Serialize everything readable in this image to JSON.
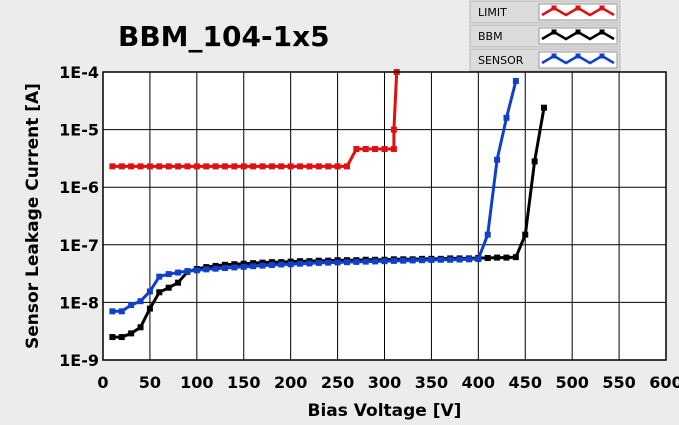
{
  "chart_data": {
    "type": "line",
    "title": "BBM_104-1x5",
    "xlabel": "Bias Voltage [V]",
    "ylabel": "Sensor Leakage Current [A]",
    "xlim": [
      0,
      600
    ],
    "ylim": [
      1e-09,
      0.0001
    ],
    "yscale": "log",
    "grid": true,
    "legend_position": "top-right",
    "x_ticks": [
      "0",
      "50",
      "100",
      "150",
      "200",
      "250",
      "300",
      "350",
      "400",
      "450",
      "500",
      "550",
      "600"
    ],
    "y_ticks": [
      "1E-9",
      "1E-8",
      "1E-7",
      "1E-6",
      "1E-5",
      "1E-4"
    ],
    "series": [
      {
        "name": "LIMIT",
        "color": "#e01010",
        "x": [
          10,
          20,
          30,
          40,
          50,
          60,
          70,
          80,
          90,
          100,
          110,
          120,
          130,
          140,
          150,
          160,
          170,
          180,
          190,
          200,
          210,
          220,
          230,
          240,
          250,
          260,
          270,
          280,
          290,
          300,
          310,
          310,
          313
        ],
        "y": [
          2.3e-06,
          2.3e-06,
          2.3e-06,
          2.3e-06,
          2.3e-06,
          2.3e-06,
          2.3e-06,
          2.3e-06,
          2.3e-06,
          2.3e-06,
          2.3e-06,
          2.3e-06,
          2.3e-06,
          2.3e-06,
          2.3e-06,
          2.3e-06,
          2.3e-06,
          2.3e-06,
          2.3e-06,
          2.3e-06,
          2.3e-06,
          2.3e-06,
          2.3e-06,
          2.3e-06,
          2.3e-06,
          2.3e-06,
          4.6e-06,
          4.6e-06,
          4.6e-06,
          4.6e-06,
          4.6e-06,
          1e-05,
          0.0001
        ]
      },
      {
        "name": "BBM",
        "color": "#000000",
        "x": [
          10,
          20,
          30,
          40,
          50,
          60,
          70,
          80,
          90,
          100,
          110,
          120,
          130,
          140,
          150,
          160,
          170,
          180,
          190,
          200,
          210,
          220,
          230,
          240,
          250,
          260,
          270,
          280,
          290,
          300,
          310,
          320,
          330,
          340,
          350,
          360,
          370,
          380,
          390,
          400,
          410,
          420,
          430,
          440,
          450,
          460,
          470
        ],
        "y": [
          2.5e-09,
          2.5e-09,
          2.9e-09,
          3.7e-09,
          7.8e-09,
          1.5e-08,
          1.8e-08,
          2.2e-08,
          3.4e-08,
          3.8e-08,
          4.1e-08,
          4.3e-08,
          4.5e-08,
          4.6e-08,
          4.7e-08,
          4.8e-08,
          4.9e-08,
          5e-08,
          5e-08,
          5.1e-08,
          5.2e-08,
          5.2e-08,
          5.3e-08,
          5.3e-08,
          5.4e-08,
          5.4e-08,
          5.4e-08,
          5.5e-08,
          5.5e-08,
          5.5e-08,
          5.6e-08,
          5.6e-08,
          5.6e-08,
          5.7e-08,
          5.7e-08,
          5.7e-08,
          5.8e-08,
          5.8e-08,
          5.8e-08,
          5.9e-08,
          5.9e-08,
          6e-08,
          6e-08,
          6.1e-08,
          1.5e-07,
          2.8e-06,
          2.4e-05
        ]
      },
      {
        "name": "SENSOR",
        "color": "#1040c8",
        "x": [
          10,
          20,
          30,
          40,
          50,
          60,
          70,
          80,
          90,
          100,
          110,
          120,
          130,
          140,
          150,
          160,
          170,
          180,
          190,
          200,
          210,
          220,
          230,
          240,
          250,
          260,
          270,
          280,
          290,
          300,
          310,
          320,
          330,
          340,
          350,
          360,
          370,
          380,
          390,
          400,
          410,
          420,
          430,
          440
        ],
        "y": [
          7e-09,
          7e-09,
          9e-09,
          1.05e-08,
          1.55e-08,
          2.8e-08,
          3.1e-08,
          3.3e-08,
          3.5e-08,
          3.6e-08,
          3.75e-08,
          3.85e-08,
          3.95e-08,
          4.05e-08,
          4.15e-08,
          4.25e-08,
          4.35e-08,
          4.45e-08,
          4.55e-08,
          4.6e-08,
          4.7e-08,
          4.75e-08,
          4.85e-08,
          4.9e-08,
          4.95e-08,
          5e-08,
          5.05e-08,
          5.1e-08,
          5.15e-08,
          5.2e-08,
          5.25e-08,
          5.3e-08,
          5.35e-08,
          5.4e-08,
          5.45e-08,
          5.5e-08,
          5.5e-08,
          5.55e-08,
          5.6e-08,
          5.65e-08,
          1.5e-07,
          3e-06,
          1.6e-05,
          7e-05
        ]
      }
    ]
  }
}
